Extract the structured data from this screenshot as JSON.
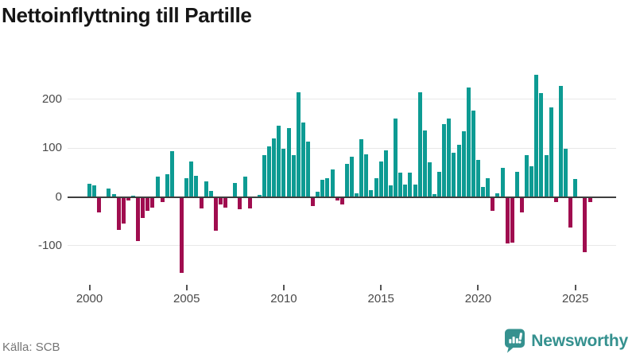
{
  "header": {
    "title": "Nettoinflyttning till Partille"
  },
  "footer": {
    "source": "Källa: SCB",
    "brand": "Newsworthy"
  },
  "colors": {
    "positive": "#0d9b93",
    "negative": "#a00d4f",
    "gridline": "#e8e8e8",
    "zero_axis": "#3e3e3e",
    "tick_text": "#4a4a4a",
    "title_text": "#161616",
    "source_text": "#757575",
    "brand_teal": "#35918f"
  },
  "chart_data": {
    "type": "bar",
    "title": "Nettoinflyttning till Partille",
    "xlabel": "",
    "ylabel": "",
    "frequency": "quarterly",
    "grid": true,
    "legend_position": "none",
    "ylim": [
      -165,
      265
    ],
    "y_gridline_values": [
      200,
      100,
      0,
      -100
    ],
    "y_tick_labels": [
      "200",
      "100",
      "0",
      "-100"
    ],
    "x_tick_years": [
      2000,
      2005,
      2010,
      2015,
      2020,
      2025
    ],
    "x_tick_labels": [
      "2000",
      "2005",
      "2010",
      "2015",
      "2020",
      "2025"
    ],
    "categories": [
      "2000 Q1",
      "2000 Q2",
      "2000 Q3",
      "2000 Q4",
      "2001 Q1",
      "2001 Q2",
      "2001 Q3",
      "2001 Q4",
      "2002 Q1",
      "2002 Q2",
      "2002 Q3",
      "2002 Q4",
      "2003 Q1",
      "2003 Q2",
      "2003 Q3",
      "2003 Q4",
      "2004 Q1",
      "2004 Q2",
      "2004 Q3",
      "2004 Q4",
      "2005 Q1",
      "2005 Q2",
      "2005 Q3",
      "2005 Q4",
      "2006 Q1",
      "2006 Q2",
      "2006 Q3",
      "2006 Q4",
      "2007 Q1",
      "2007 Q2",
      "2007 Q3",
      "2007 Q4",
      "2008 Q1",
      "2008 Q2",
      "2008 Q3",
      "2008 Q4",
      "2009 Q1",
      "2009 Q2",
      "2009 Q3",
      "2009 Q4",
      "2010 Q1",
      "2010 Q2",
      "2010 Q3",
      "2010 Q4",
      "2011 Q1",
      "2011 Q2",
      "2011 Q3",
      "2011 Q4",
      "2012 Q1",
      "2012 Q2",
      "2012 Q3",
      "2012 Q4",
      "2013 Q1",
      "2013 Q2",
      "2013 Q3",
      "2013 Q4",
      "2014 Q1",
      "2014 Q2",
      "2014 Q3",
      "2014 Q4",
      "2015 Q1",
      "2015 Q2",
      "2015 Q3",
      "2015 Q4",
      "2016 Q1",
      "2016 Q2",
      "2016 Q3",
      "2016 Q4",
      "2017 Q1",
      "2017 Q2",
      "2017 Q3",
      "2017 Q4",
      "2018 Q1",
      "2018 Q2",
      "2018 Q3",
      "2018 Q4",
      "2019 Q1",
      "2019 Q2",
      "2019 Q3",
      "2019 Q4",
      "2020 Q1",
      "2020 Q2",
      "2020 Q3",
      "2020 Q4",
      "2021 Q1",
      "2021 Q2",
      "2021 Q3",
      "2021 Q4",
      "2022 Q1",
      "2022 Q2",
      "2022 Q3",
      "2022 Q4",
      "2023 Q1",
      "2023 Q2",
      "2023 Q3",
      "2023 Q4",
      "2024 Q1",
      "2024 Q2",
      "2024 Q3",
      "2024 Q4",
      "2025 Q1",
      "2025 Q2",
      "2025 Q3",
      "2025 Q4"
    ],
    "series": [
      {
        "name": "Nettoinflyttning",
        "values": [
          27,
          23,
          -31,
          0,
          17,
          5,
          -68,
          -55,
          -8,
          3,
          -90,
          -43,
          -29,
          -22,
          42,
          -11,
          46,
          94,
          0,
          -155,
          38,
          72,
          44,
          -23,
          32,
          12,
          -69,
          -16,
          -22,
          0,
          28,
          -26,
          42,
          -23,
          0,
          4,
          85,
          104,
          120,
          146,
          98,
          141,
          85,
          215,
          153,
          113,
          -19,
          10,
          35,
          39,
          57,
          -8,
          -15,
          68,
          83,
          7,
          119,
          88,
          14,
          38,
          73,
          95,
          24,
          161,
          50,
          25,
          50,
          26,
          215,
          136,
          71,
          6,
          51,
          149,
          161,
          91,
          106,
          134,
          224,
          177,
          76,
          20,
          38,
          -28,
          8,
          60,
          -96,
          -93,
          51,
          -32,
          85,
          63,
          250,
          213,
          86,
          183,
          -11,
          228,
          98,
          -63,
          37,
          0,
          -113,
          -11
        ]
      }
    ]
  }
}
